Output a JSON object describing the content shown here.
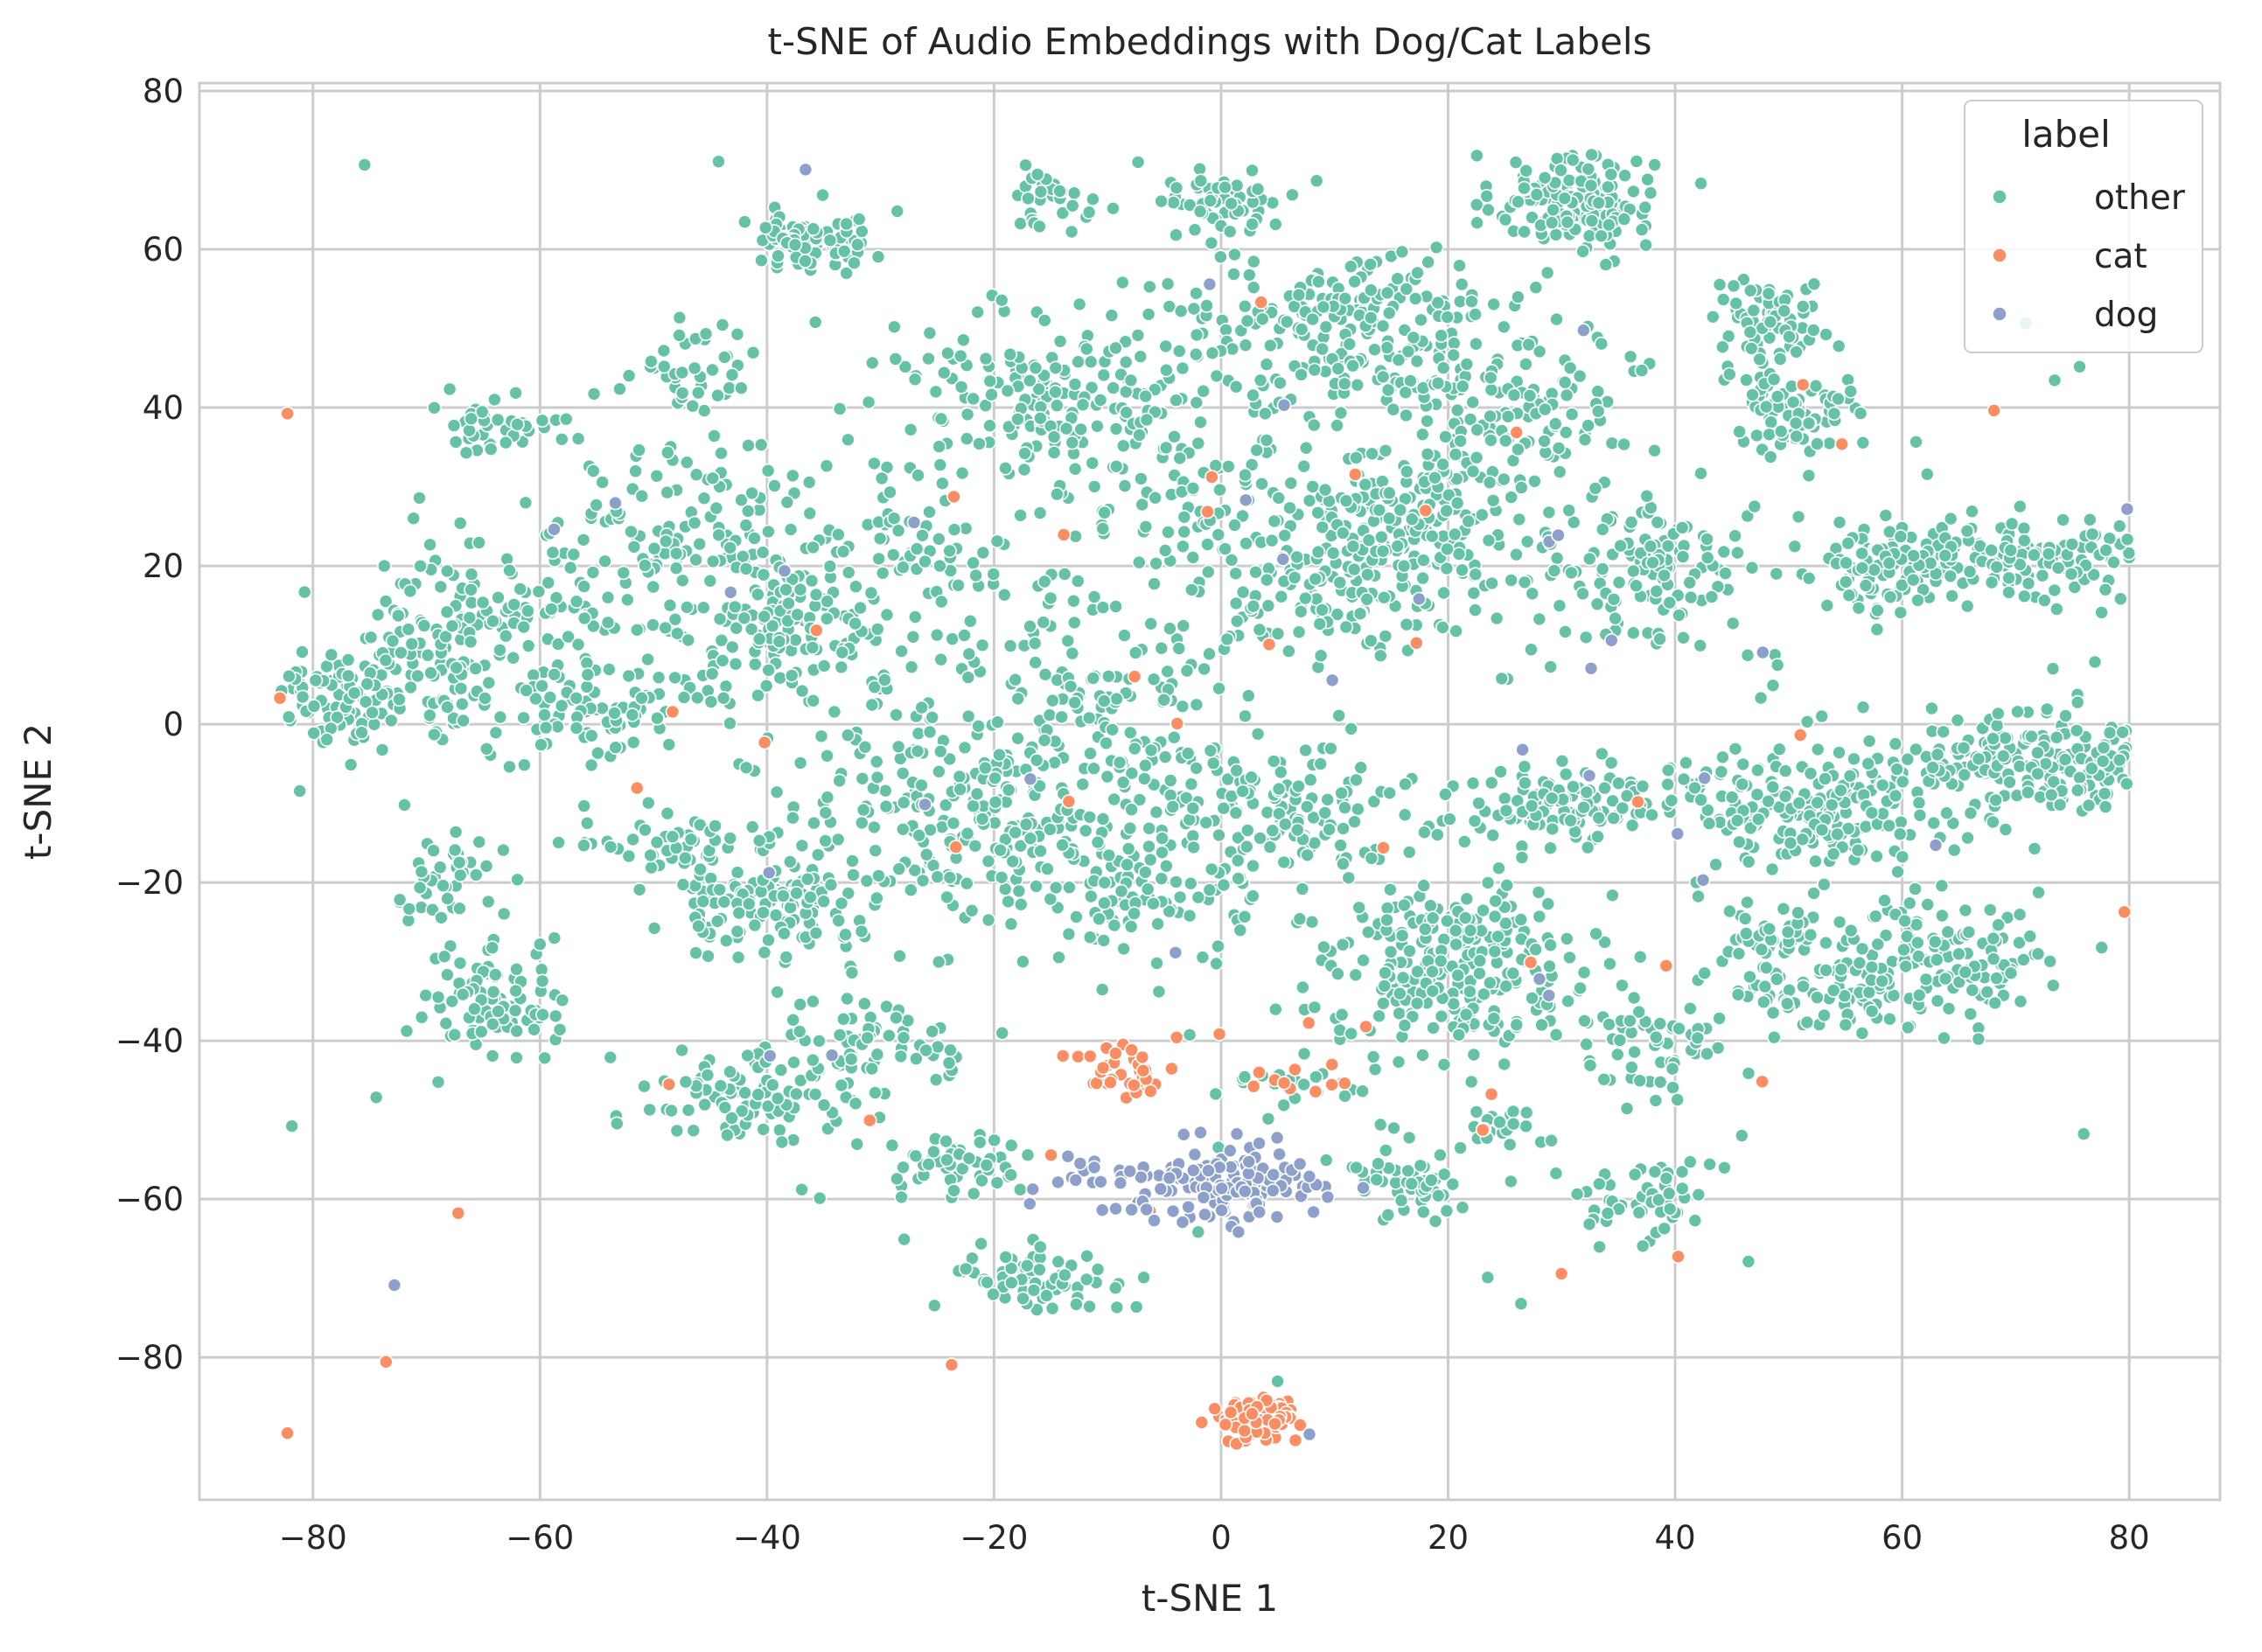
{
  "chart_data": {
    "type": "scatter",
    "title": "t-SNE of Audio Embeddings with Dog/Cat Labels",
    "xlabel": "t-SNE 1",
    "ylabel": "t-SNE 2",
    "xlim": [
      -90,
      88
    ],
    "ylim": [
      -98,
      81
    ],
    "xticks": [
      -80,
      -60,
      -40,
      -20,
      0,
      20,
      40,
      60,
      80
    ],
    "yticks": [
      -80,
      -60,
      -40,
      -20,
      0,
      20,
      40,
      60,
      80
    ],
    "tick_labels_x": [
      "−80",
      "−60",
      "−40",
      "−20",
      "0",
      "20",
      "40",
      "60",
      "80"
    ],
    "tick_labels_y": [
      "−80",
      "−60",
      "−40",
      "−20",
      "0",
      "20",
      "40",
      "60",
      "80"
    ],
    "grid": true,
    "legend": {
      "title": "label",
      "position": "top-right",
      "entries": [
        {
          "name": "other",
          "color": "#66c2a5"
        },
        {
          "name": "cat",
          "color": "#fc8d62"
        },
        {
          "name": "dog",
          "color": "#8da0cb"
        }
      ]
    },
    "series": [
      {
        "name": "other",
        "color": "#66c2a5",
        "clusters": [
          {
            "cx": 31,
            "cy": 66,
            "sx": 3.5,
            "sy": 3,
            "n": 150
          },
          {
            "cx": -36,
            "cy": 61,
            "sx": 2.5,
            "sy": 2,
            "n": 90
          },
          {
            "cx": 0,
            "cy": 66,
            "sx": 3,
            "sy": 2,
            "n": 50
          },
          {
            "cx": -15,
            "cy": 66,
            "sx": 2,
            "sy": 2,
            "n": 30
          },
          {
            "cx": 10,
            "cy": 50,
            "sx": 7,
            "sy": 5,
            "n": 200
          },
          {
            "cx": -15,
            "cy": 42,
            "sx": 6,
            "sy": 5,
            "n": 160
          },
          {
            "cx": 24,
            "cy": 40,
            "sx": 6,
            "sy": 6,
            "n": 160
          },
          {
            "cx": 48,
            "cy": 50,
            "sx": 2.5,
            "sy": 3,
            "n": 70
          },
          {
            "cx": 50,
            "cy": 39,
            "sx": 2.5,
            "sy": 3,
            "n": 80
          },
          {
            "cx": -64,
            "cy": 38,
            "sx": 3,
            "sy": 2,
            "n": 40
          },
          {
            "cx": -46,
            "cy": 45,
            "sx": 3,
            "sy": 3,
            "n": 40
          },
          {
            "cx": 15,
            "cy": 25,
            "sx": 6,
            "sy": 5,
            "n": 180
          },
          {
            "cx": 38,
            "cy": 20,
            "sx": 5,
            "sy": 5,
            "n": 120
          },
          {
            "cx": 68,
            "cy": 21,
            "sx": 7,
            "sy": 2.5,
            "n": 170
          },
          {
            "cx": 58,
            "cy": 19,
            "sx": 2.5,
            "sy": 2.5,
            "n": 60
          },
          {
            "cx": 10,
            "cy": 15,
            "sx": 5,
            "sy": 4,
            "n": 80
          },
          {
            "cx": -45,
            "cy": 22,
            "sx": 6,
            "sy": 7,
            "n": 160
          },
          {
            "cx": -62,
            "cy": 15,
            "sx": 5,
            "sy": 5,
            "n": 90
          },
          {
            "cx": -78,
            "cy": 3,
            "sx": 2.5,
            "sy": 3,
            "n": 70
          },
          {
            "cx": -70,
            "cy": 6,
            "sx": 4,
            "sy": 5,
            "n": 100
          },
          {
            "cx": -55,
            "cy": 2,
            "sx": 5,
            "sy": 3,
            "n": 80
          },
          {
            "cx": -38,
            "cy": 11,
            "sx": 4,
            "sy": 4,
            "n": 80
          },
          {
            "cx": -25,
            "cy": 18,
            "sx": 6,
            "sy": 7,
            "n": 110
          },
          {
            "cx": -5,
            "cy": 30,
            "sx": 6,
            "sy": 7,
            "n": 100
          },
          {
            "cx": -8,
            "cy": 5,
            "sx": 4,
            "sy": 4,
            "n": 60
          },
          {
            "cx": 30,
            "cy": -10,
            "sx": 5,
            "sy": 2.5,
            "n": 120
          },
          {
            "cx": 52,
            "cy": -10,
            "sx": 6,
            "sy": 4,
            "n": 200
          },
          {
            "cx": 71,
            "cy": -5,
            "sx": 6,
            "sy": 3,
            "n": 180
          },
          {
            "cx": 62,
            "cy": -30,
            "sx": 5,
            "sy": 4,
            "n": 150
          },
          {
            "cx": 52,
            "cy": -34,
            "sx": 4,
            "sy": 2,
            "n": 50
          },
          {
            "cx": 49,
            "cy": -27,
            "sx": 2,
            "sy": 2,
            "n": 40
          },
          {
            "cx": -20,
            "cy": -10,
            "sx": 8,
            "sy": 6,
            "n": 250
          },
          {
            "cx": -2,
            "cy": -8,
            "sx": 5,
            "sy": 4,
            "n": 80
          },
          {
            "cx": 21,
            "cy": -30,
            "sx": 6,
            "sy": 5,
            "n": 260
          },
          {
            "cx": 8,
            "cy": -12,
            "sx": 4,
            "sy": 3,
            "n": 60
          },
          {
            "cx": -40,
            "cy": -22,
            "sx": 5,
            "sy": 3.5,
            "n": 160
          },
          {
            "cx": -50,
            "cy": -15,
            "sx": 4,
            "sy": 2,
            "n": 40
          },
          {
            "cx": -68,
            "cy": -20,
            "sx": 2.5,
            "sy": 3,
            "n": 40
          },
          {
            "cx": -64,
            "cy": -35,
            "sx": 3.5,
            "sy": 3,
            "n": 90
          },
          {
            "cx": -42,
            "cy": -47,
            "sx": 4,
            "sy": 3,
            "n": 90
          },
          {
            "cx": -30,
            "cy": -40,
            "sx": 4,
            "sy": 3,
            "n": 60
          },
          {
            "cx": -24,
            "cy": -55,
            "sx": 3,
            "sy": 2,
            "n": 50
          },
          {
            "cx": -16,
            "cy": -70,
            "sx": 4,
            "sy": 2,
            "n": 80
          },
          {
            "cx": -5,
            "cy": -22,
            "sx": 5,
            "sy": 4,
            "n": 80
          },
          {
            "cx": 38,
            "cy": -42,
            "sx": 3,
            "sy": 3,
            "n": 50
          },
          {
            "cx": 37,
            "cy": -60,
            "sx": 3,
            "sy": 3,
            "n": 50
          },
          {
            "cx": 17,
            "cy": -58,
            "sx": 3,
            "sy": 2,
            "n": 50
          },
          {
            "cx": 25,
            "cy": -51,
            "sx": 2,
            "sy": 1.5,
            "n": 20
          },
          {
            "cx": 7,
            "cy": -45,
            "sx": 3,
            "sy": 2,
            "n": 20
          },
          {
            "cx": 0,
            "cy": 0,
            "sx": 40,
            "sy": 30,
            "n": 300
          }
        ]
      },
      {
        "name": "cat",
        "color": "#fc8d62",
        "clusters": [
          {
            "cx": 3,
            "cy": -88,
            "sx": 2,
            "sy": 1.5,
            "n": 75
          },
          {
            "cx": -8,
            "cy": -44,
            "sx": 2,
            "sy": 1.5,
            "n": 40
          },
          {
            "cx": 7,
            "cy": -45,
            "sx": 2,
            "sy": 1,
            "n": 10
          },
          {
            "cx": 0,
            "cy": -10,
            "sx": 40,
            "sy": 40,
            "n": 45
          }
        ]
      },
      {
        "name": "dog",
        "color": "#8da0cb",
        "clusters": [
          {
            "cx": 0,
            "cy": -58,
            "sx": 4,
            "sy": 2.5,
            "n": 150
          },
          {
            "cx": -10,
            "cy": -58,
            "sx": 3,
            "sy": 2,
            "n": 20
          },
          {
            "cx": 0,
            "cy": -5,
            "sx": 40,
            "sy": 35,
            "n": 35
          }
        ]
      }
    ]
  }
}
